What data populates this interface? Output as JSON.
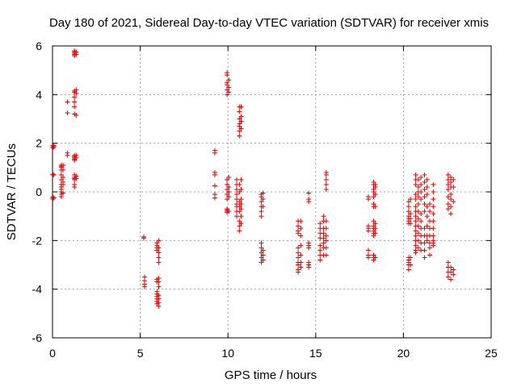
{
  "chart_data": {
    "type": "scatter",
    "title": "Day 180 of 2021, Sidereal Day-to-day VTEC variation (SDTVAR) for receiver xmis",
    "xlabel": "GPS time / hours",
    "ylabel": "SDTVAR / TECUs",
    "xlim": [
      0,
      25
    ],
    "ylim": [
      -6,
      6
    ],
    "xticks": [
      0,
      5,
      10,
      15,
      20,
      25
    ],
    "yticks": [
      -6,
      -4,
      -2,
      0,
      2,
      4,
      6
    ],
    "xtick_labels": [
      "0",
      "5",
      "10",
      "15",
      "20",
      "25"
    ],
    "ytick_labels": [
      "-6",
      "-4",
      "-2",
      "0",
      "2",
      "4",
      "6"
    ],
    "grid": true,
    "marker": "+",
    "color": "#e00000",
    "clusters": [
      {
        "x": 0.02,
        "y": [
          1.9,
          1.85,
          1.8,
          0.7,
          0.72,
          -0.2,
          -0.25,
          -0.3
        ]
      },
      {
        "x": 0.08,
        "y": [
          1.85,
          1.9,
          0.7,
          -0.25
        ]
      },
      {
        "x": 0.5,
        "y": [
          1.1,
          1.05,
          1.0,
          0.9,
          0.7,
          0.5,
          0.3,
          0.2,
          0.1,
          0.0,
          -0.1,
          -0.2
        ]
      },
      {
        "x": 0.6,
        "y": [
          1.1,
          0.9,
          0.6,
          0.4,
          0.3,
          -0.05
        ]
      },
      {
        "x": 0.85,
        "y": [
          3.7,
          3.25,
          1.6,
          1.5
        ]
      },
      {
        "x": 1.25,
        "y": [
          5.8,
          5.75,
          5.7,
          5.65,
          5.6,
          4.15,
          4.1,
          3.9,
          3.7,
          3.5,
          3.2,
          1.5,
          1.45,
          1.4,
          1.35,
          1.3,
          0.7,
          0.6,
          0.55,
          0.5,
          0.3,
          0.2
        ]
      },
      {
        "x": 1.35,
        "y": [
          5.75,
          5.65,
          4.2,
          4.05,
          3.15,
          1.5,
          1.4,
          0.65,
          0.55
        ]
      },
      {
        "x": 5.2,
        "y": [
          -1.85,
          -1.9
        ]
      },
      {
        "x": 5.25,
        "y": [
          -3.5,
          -3.65,
          -3.8,
          -3.9
        ]
      },
      {
        "x": 5.95,
        "y": [
          -2.1,
          -2.2,
          -2.3,
          -2.4,
          -3.6,
          -3.7,
          -4.1,
          -4.2,
          -4.3,
          -4.4,
          -4.5,
          -4.6
        ]
      },
      {
        "x": 6.05,
        "y": [
          -2.0,
          -2.3,
          -2.5,
          -2.7,
          -2.9,
          -3.55,
          -3.7,
          -3.9,
          -4.25,
          -4.4,
          -4.55,
          -4.7
        ]
      },
      {
        "x": 9.25,
        "y": [
          1.7,
          1.6,
          0.8,
          0.7,
          0.25,
          -0.1,
          -0.25
        ]
      },
      {
        "x": 9.95,
        "y": [
          4.9,
          4.8,
          4.5,
          4.4,
          4.2,
          4.0,
          0.5,
          0.3,
          0.1,
          -0.1,
          -0.3,
          -0.7,
          -0.75,
          -0.8,
          -0.85
        ]
      },
      {
        "x": 10.05,
        "y": [
          4.6,
          4.3,
          4.1,
          0.6,
          0.2,
          0.0,
          -0.2,
          -0.8
        ]
      },
      {
        "x": 10.5,
        "y": [
          0.5,
          0.3,
          0.1,
          -0.1,
          -0.3,
          -0.5,
          -0.6,
          -0.8,
          -1.0
        ]
      },
      {
        "x": 10.65,
        "y": [
          3.5,
          3.3,
          3.0,
          2.8,
          2.7,
          2.5,
          2.3,
          0.3,
          0.0,
          -0.4,
          -0.6,
          -0.8,
          -1.2,
          -1.4,
          -1.6
        ]
      },
      {
        "x": 10.75,
        "y": [
          3.5,
          3.1,
          2.9,
          2.6,
          0.5,
          0.1,
          -0.3,
          -0.5,
          -0.7,
          -1.0,
          -1.3
        ]
      },
      {
        "x": 11.9,
        "y": [
          -0.1,
          -0.2,
          -0.4,
          -0.6,
          -0.8,
          -1.0,
          -2.1,
          -2.3,
          -2.5,
          -2.7,
          -2.9
        ]
      },
      {
        "x": 12.0,
        "y": [
          -0.05,
          -0.3,
          -0.6,
          -2.4,
          -2.6,
          -2.8
        ]
      },
      {
        "x": 14.0,
        "y": [
          -1.2,
          -1.4,
          -1.6,
          -1.7,
          -2.3,
          -2.5,
          -2.7,
          -2.9,
          -3.0,
          -3.2,
          -3.3
        ]
      },
      {
        "x": 14.15,
        "y": [
          -1.2,
          -1.5,
          -1.8,
          -2.2,
          -2.6,
          -2.9,
          -3.1
        ]
      },
      {
        "x": 14.6,
        "y": [
          -0.05,
          -0.3,
          -0.4,
          -2.1,
          -2.2,
          -2.3,
          -2.9,
          -3.0,
          -3.1
        ]
      },
      {
        "x": 15.25,
        "y": [
          -1.3,
          -1.5,
          -1.7,
          -1.9,
          -2.2,
          -2.4,
          -2.6,
          -2.8
        ]
      },
      {
        "x": 15.45,
        "y": [
          -1.0,
          -1.2,
          -1.5,
          -1.7,
          -1.9,
          -2.1,
          -2.3,
          -2.6
        ]
      },
      {
        "x": 15.6,
        "y": [
          0.8,
          0.7,
          0.5,
          0.3,
          0.1,
          -1.2,
          -1.5,
          -1.8,
          -2.0,
          -2.3,
          -2.6
        ]
      },
      {
        "x": 18.0,
        "y": [
          -0.2,
          -0.3,
          -1.4,
          -1.5,
          -1.6,
          -2.4,
          -2.6,
          -2.7
        ]
      },
      {
        "x": 18.3,
        "y": [
          0.4,
          0.3,
          0.1,
          0.0,
          -0.2,
          -0.5,
          -0.6,
          -1.2,
          -1.4,
          -1.5,
          -1.6,
          -1.7,
          -1.8,
          -2.6,
          -2.7,
          -2.8
        ]
      },
      {
        "x": 18.4,
        "y": [
          0.3,
          0.2,
          -0.1,
          -0.6,
          -1.3,
          -1.5,
          -1.7,
          -2.7
        ]
      },
      {
        "x": 20.3,
        "y": [
          -0.4,
          -0.6,
          -0.8,
          -1.0,
          -1.1,
          -1.2,
          -1.3,
          -2.7,
          -2.8,
          -2.9,
          -3.0,
          -3.2
        ]
      },
      {
        "x": 20.4,
        "y": [
          -0.3,
          -0.9,
          -1.1,
          -1.3,
          -2.7,
          -3.0
        ]
      },
      {
        "x": 20.7,
        "y": [
          0.7,
          0.5,
          0.3,
          -0.1,
          -0.3,
          -0.6,
          -0.8,
          -1.0,
          -1.2,
          -1.4,
          -1.6,
          -1.8,
          -2.0,
          -2.2,
          -2.4,
          -2.5
        ]
      },
      {
        "x": 20.85,
        "y": [
          0.5,
          0.2,
          0.0,
          -0.2,
          -0.5,
          -0.8,
          -1.1,
          -1.4,
          -1.7,
          -2.0,
          -2.3
        ]
      },
      {
        "x": 21.0,
        "y": [
          0.6,
          0.3,
          0.0,
          -0.3,
          -0.9,
          -1.2,
          -1.5,
          -1.8,
          -2.1,
          -2.4
        ]
      },
      {
        "x": 21.2,
        "y": [
          0.7,
          0.4,
          0.1,
          -0.2,
          -0.5,
          -0.8,
          -1.5,
          -1.8,
          -2.1,
          -2.4,
          -2.7
        ]
      },
      {
        "x": 21.35,
        "y": [
          0.5,
          0.2,
          -0.1,
          -0.6,
          -1.0,
          -1.4,
          -1.8,
          -2.0
        ]
      },
      {
        "x": 21.5,
        "y": [
          -0.5,
          -0.8,
          -1.2,
          -1.5,
          -1.8,
          -2.1,
          -2.3,
          -2.6
        ]
      },
      {
        "x": 21.7,
        "y": [
          0.3,
          0.0,
          -0.3,
          -0.6,
          -0.9,
          -1.2,
          -1.5,
          -1.8,
          -2.0,
          -2.1,
          -2.2
        ]
      },
      {
        "x": 22.55,
        "y": [
          0.7,
          0.5,
          0.3,
          0.1,
          -0.2,
          -0.5,
          -0.7,
          -2.9,
          -3.1,
          -3.3,
          -3.5
        ]
      },
      {
        "x": 22.7,
        "y": [
          0.6,
          0.4,
          0.2,
          -0.1,
          -0.3,
          -0.6,
          -0.9,
          -3.1,
          -3.3,
          -3.6
        ]
      },
      {
        "x": 22.85,
        "y": [
          0.5,
          0.2,
          -0.4,
          -3.2,
          -3.4
        ]
      }
    ]
  }
}
